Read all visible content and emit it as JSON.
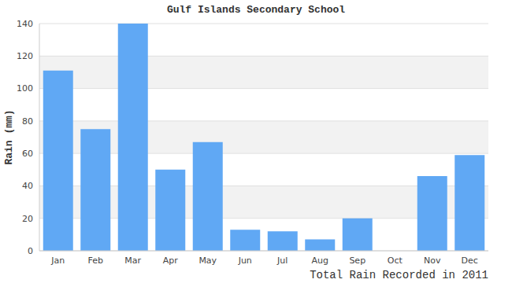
{
  "chart_data": {
    "type": "bar",
    "title": "Gulf Islands Secondary School",
    "x_label": "Total Rain Recorded in 2011",
    "y_label": "Rain (mm)",
    "categories": [
      "Jan",
      "Feb",
      "Mar",
      "Apr",
      "May",
      "Jun",
      "Jul",
      "Aug",
      "Sep",
      "Oct",
      "Nov",
      "Dec"
    ],
    "values": [
      111,
      75,
      140,
      50,
      67,
      13,
      12,
      7,
      20,
      0,
      46,
      59
    ],
    "color": "#60a8f4",
    "ylim": [
      0,
      140
    ],
    "yticks": [
      0,
      20,
      40,
      60,
      80,
      100,
      120,
      140
    ],
    "grid": true
  }
}
